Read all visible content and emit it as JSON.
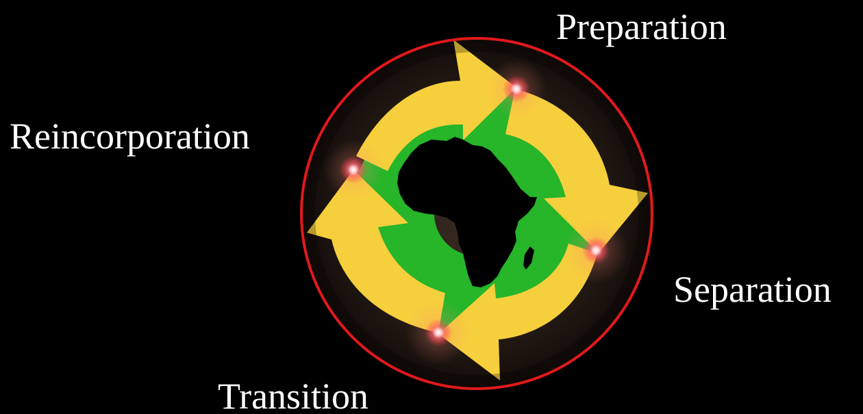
{
  "stages": {
    "preparation": "Preparation",
    "separation": "Separation",
    "transition": "Transition",
    "reincorporation": "Reincorporation"
  },
  "colors": {
    "background": "#000000",
    "ring": "#e2191b",
    "arrow": "#f6cf3c",
    "ground": "#27b52a",
    "continent": "#000000",
    "label": "#ffffff",
    "glow": "#ff5f6d"
  },
  "icons": {
    "center": "africa-continent-icon",
    "cycle": "cycle-arrows-icon"
  }
}
